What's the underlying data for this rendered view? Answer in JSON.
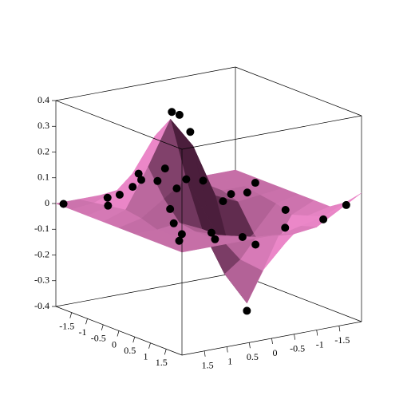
{
  "chart_data": {
    "type": "surface3d",
    "xlim": [
      -2,
      2
    ],
    "ylim": [
      -2,
      2
    ],
    "zlim": [
      -0.4,
      0.4
    ],
    "xticks": [
      -1.5,
      -1,
      -0.5,
      0,
      0.5,
      1,
      1.5
    ],
    "yticks": [
      -1.5,
      -1,
      -0.5,
      0,
      0.5,
      1,
      1.5
    ],
    "zticks": [
      -0.4,
      -0.3,
      -0.2,
      -0.1,
      0,
      0.1,
      0.2,
      0.3,
      0.4
    ],
    "surface": {
      "color": "#d97fbf",
      "x": [
        -2,
        -1.5,
        -1,
        -0.5,
        0,
        0.5,
        1,
        1.5,
        2
      ],
      "y": [
        -2,
        -1.5,
        -1,
        -0.5,
        0,
        0.5,
        1,
        1.5,
        2
      ],
      "z": [
        [
          0,
          0,
          0,
          0,
          0.01,
          0.01,
          0,
          0,
          0
        ],
        [
          0,
          0,
          0,
          0.01,
          0.05,
          0.07,
          0.04,
          0.01,
          0
        ],
        [
          0,
          0,
          0,
          0.05,
          0.19,
          0.26,
          0.13,
          0.02,
          0
        ],
        [
          0,
          -0.01,
          -0.02,
          0.02,
          0.23,
          0.35,
          0.18,
          0.03,
          0
        ],
        [
          0,
          -0.02,
          -0.12,
          -0.19,
          -0.03,
          0.14,
          0.08,
          0.02,
          0
        ],
        [
          0,
          -0.04,
          -0.19,
          -0.35,
          -0.22,
          -0.03,
          0.01,
          0,
          0
        ],
        [
          0,
          -0.02,
          -0.11,
          -0.2,
          -0.14,
          -0.03,
          0,
          0,
          0
        ],
        [
          0.04,
          0,
          -0.02,
          -0.04,
          -0.03,
          -0.01,
          0,
          0,
          0
        ],
        [
          0.1,
          0.05,
          0,
          -0.01,
          0,
          0,
          0,
          0,
          0
        ]
      ]
    },
    "points": {
      "color": "#000000",
      "x": [
        -0.6,
        -0.5,
        -0.3,
        0.5,
        -1.9,
        -1.5,
        -1.4,
        -1.2,
        -1.0,
        -0.8,
        -0.2,
        0.2,
        0.6,
        1.0,
        1.2,
        -1.1,
        -1.3,
        -1.6,
        -1.0,
        0.0,
        0.2,
        -0.4,
        -0.2,
        0.3,
        1.0,
        1.5,
        1.8,
        1.2,
        -0.8,
        0.8,
        -1.7,
        1.5
      ],
      "y": [
        0.4,
        0.3,
        0.2,
        -0.5,
        1.9,
        1.2,
        1.0,
        1.4,
        0.8,
        1.0,
        1.0,
        1.0,
        1.2,
        1.3,
        1.5,
        0.2,
        -0.2,
        -1.0,
        -1.2,
        0.5,
        0.0,
        -0.6,
        -1.0,
        -1.5,
        -1.0,
        -1.5,
        -1.8,
        -0.2,
        -1.6,
        0.5,
        0.5,
        0.3
      ],
      "z": [
        0.37,
        0.36,
        0.3,
        -0.38,
        0,
        0.02,
        0.03,
        0.01,
        0.1,
        0.14,
        0.14,
        0.05,
        0.02,
        0,
        -0.01,
        0.12,
        0.02,
        0.01,
        -0.02,
        0.14,
        -0.1,
        0,
        0.03,
        -0.03,
        -0.05,
        -0.01,
        0.05,
        -0.08,
        0.02,
        -0.03,
        0.03,
        -0.02
      ]
    }
  }
}
